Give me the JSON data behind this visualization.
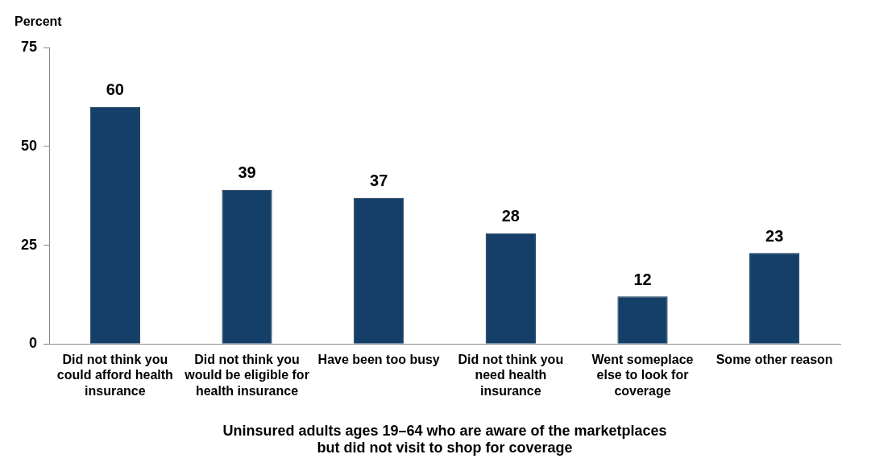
{
  "chart_data": {
    "type": "bar",
    "ylabel": "Percent",
    "xlabel": "Uninsured adults ages 19–64 who are aware of the marketplaces but did not visit to shop for coverage",
    "categories": [
      "Did not think you could afford health insurance",
      "Did not think you would be eligible for health insurance",
      "Have been too busy",
      "Did not think you need health insurance",
      "Went someplace else to look for coverage",
      "Some other reason"
    ],
    "values": [
      60,
      39,
      37,
      28,
      12,
      23
    ],
    "color": "#143f68",
    "ylim": [
      0,
      75
    ],
    "yticks": [
      0,
      25,
      50,
      75
    ],
    "grid": false,
    "data_labels": true,
    "legend": false
  }
}
